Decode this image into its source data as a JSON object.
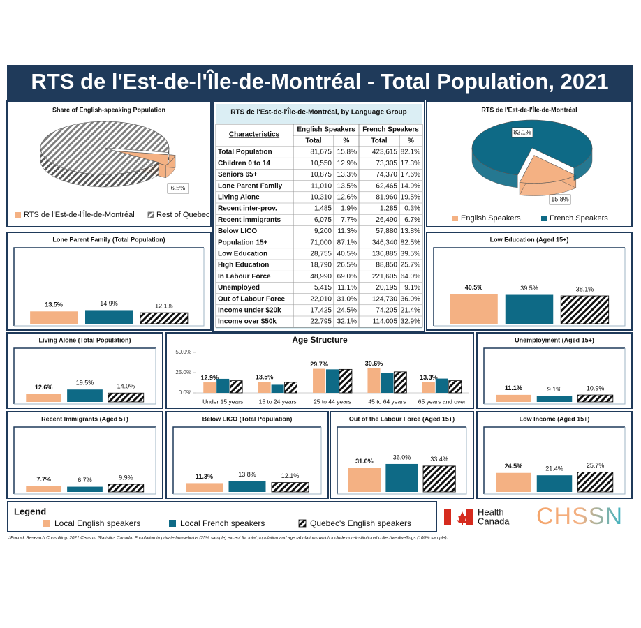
{
  "header": {
    "title": "RTS de l'Est-de-l'Île-de-Montréal - Total Population, 2021"
  },
  "chart_data": [
    {
      "type": "pie",
      "title": "Share of English-speaking Population",
      "categories": [
        "RTS de l'Est-de-l'Île-de-Montréal",
        "Rest of Quebec"
      ],
      "values": [
        6.5,
        93.5
      ],
      "value_labels": [
        "6.5%",
        null
      ],
      "colors": [
        "#f4b183",
        "#7f7f7f"
      ],
      "hatch": [
        false,
        true
      ]
    },
    {
      "type": "pie",
      "title": "RTS de l'Est-de-l'Île-de-Montréal",
      "categories": [
        "English Speakers",
        "French Speakers"
      ],
      "values": [
        15.8,
        82.1
      ],
      "value_labels": [
        "15.8%",
        "82.1%"
      ],
      "colors": [
        "#f4b183",
        "#0e6a86"
      ],
      "hatch": [
        false,
        false
      ]
    },
    {
      "type": "bar",
      "title": "Lone Parent Family (Total Population)",
      "values": [
        13.5,
        14.9,
        12.1
      ],
      "value_labels": [
        "13.5%",
        "14.9%",
        "12.1%"
      ],
      "ylim": [
        0,
        80
      ]
    },
    {
      "type": "bar",
      "title": "Low Education (Aged 15+)",
      "values": [
        40.5,
        39.5,
        38.1
      ],
      "value_labels": [
        "40.5%",
        "39.5%",
        "38.1%"
      ],
      "ylim": [
        0,
        100
      ]
    },
    {
      "type": "bar",
      "title": "Living Alone (Total Population)",
      "values": [
        12.6,
        19.5,
        14.0
      ],
      "value_labels": [
        "12.6%",
        "19.5%",
        "14.0%"
      ],
      "ylim": [
        0,
        80
      ]
    },
    {
      "type": "bar",
      "title": "Age Structure",
      "categories": [
        "Under 15 years",
        "15 to 24 years",
        "25 to 44 years",
        "45 to 64 years",
        "65 years and over"
      ],
      "series": [
        {
          "values": [
            12.9,
            13.5,
            29.7,
            30.6,
            13.3
          ],
          "value_labels": [
            "12.9%",
            "13.5%",
            "29.7%",
            "30.6%",
            "13.3%"
          ]
        },
        {
          "values": [
            17.3,
            10.0,
            29.0,
            25.0,
            17.6
          ]
        },
        {
          "values": [
            15.0,
            13.0,
            29.0,
            26.0,
            15.0
          ]
        }
      ],
      "ylim": [
        0,
        50
      ],
      "yticks": [
        {
          "value": 0,
          "label": "0.0%"
        },
        {
          "value": 25,
          "label": "25.0%"
        },
        {
          "value": 50,
          "label": "50.0%"
        }
      ]
    },
    {
      "type": "bar",
      "title": "Unemployment (Aged 15+)",
      "values": [
        11.1,
        9.1,
        10.9
      ],
      "value_labels": [
        "11.1%",
        "9.1%",
        "10.9%"
      ],
      "ylim": [
        0,
        80
      ]
    },
    {
      "type": "bar",
      "title": "Recent Immigrants (Aged 5+)",
      "values": [
        7.7,
        6.7,
        9.9
      ],
      "value_labels": [
        "7.7%",
        "6.7%",
        "9.9%"
      ],
      "ylim": [
        0,
        80
      ]
    },
    {
      "type": "bar",
      "title": "Below LICO (Total Population)",
      "values": [
        11.3,
        13.8,
        12.1
      ],
      "value_labels": [
        "11.3%",
        "13.8%",
        "12.1%"
      ],
      "ylim": [
        0,
        80
      ]
    },
    {
      "type": "bar",
      "title": "Out of the Labour Force (Aged 15+)",
      "values": [
        31.0,
        36.0,
        33.4
      ],
      "value_labels": [
        "31.0%",
        "36.0%",
        "33.4%"
      ],
      "ylim": [
        0,
        80
      ]
    },
    {
      "type": "bar",
      "title": "Low Income (Aged 15+)",
      "values": [
        24.5,
        21.4,
        25.7
      ],
      "value_labels": [
        "24.5%",
        "21.4%",
        "25.7%"
      ],
      "ylim": [
        0,
        80
      ]
    }
  ],
  "table": {
    "title": "RTS de l'Est-de-l'Île-de-Montréal, by Language Group",
    "corner": "Characteristics",
    "groups": [
      "English Speakers",
      "French Speakers"
    ],
    "subheaders": [
      "Total",
      "%",
      "Total",
      "%"
    ],
    "rows": [
      [
        "Total Population",
        "81,675",
        "15.8%",
        "423,615",
        "82.1%"
      ],
      [
        "Children 0 to 14",
        "10,550",
        "12.9%",
        "73,305",
        "17.3%"
      ],
      [
        "Seniors 65+",
        "10,875",
        "13.3%",
        "74,370",
        "17.6%"
      ],
      [
        "Lone Parent Family",
        "11,010",
        "13.5%",
        "62,465",
        "14.9%"
      ],
      [
        "Living Alone",
        "10,310",
        "12.6%",
        "81,960",
        "19.5%"
      ],
      [
        "Recent inter-prov.",
        "1,485",
        "1.9%",
        "1,285",
        "0.3%"
      ],
      [
        "Recent immigrants",
        "6,075",
        "7.7%",
        "26,490",
        "6.7%"
      ],
      [
        "Below LICO",
        "9,200",
        "11.3%",
        "57,880",
        "13.8%"
      ],
      [
        "Population 15+",
        "71,000",
        "87.1%",
        "346,340",
        "82.5%"
      ],
      [
        "Low Education",
        "28,755",
        "40.5%",
        "136,885",
        "39.5%"
      ],
      [
        "High Education",
        "18,790",
        "26.5%",
        "88,850",
        "25.7%"
      ],
      [
        "In Labour Force",
        "48,990",
        "69.0%",
        "221,605",
        "64.0%"
      ],
      [
        "Unemployed",
        "5,415",
        "11.1%",
        "20,195",
        "9.1%"
      ],
      [
        "Out of Labour Force",
        "22,010",
        "31.0%",
        "124,730",
        "36.0%"
      ],
      [
        "Income under $20k",
        "17,425",
        "24.5%",
        "74,205",
        "21.4%"
      ],
      [
        "Income over $50k",
        "22,795",
        "32.1%",
        "114,005",
        "32.9%"
      ]
    ]
  },
  "legend": {
    "title": "Legend",
    "items": [
      {
        "name": "Local English speakers",
        "color": "#f4b183",
        "hatch": false
      },
      {
        "name": "Local French speakers",
        "color": "#0e6a86",
        "hatch": false
      },
      {
        "name": "Quebec's English speakers",
        "color": "#111111",
        "hatch": true
      }
    ]
  },
  "logos": {
    "health": [
      "Health",
      "Canada"
    ],
    "chssn": "CHSSN"
  },
  "footer": "JPocock Research Consulting. 2021 Census. Statistics Canada. Population in private households (25% sample) except for total population and age tabulations which include non-institutional collective dwellings (100% sample)."
}
